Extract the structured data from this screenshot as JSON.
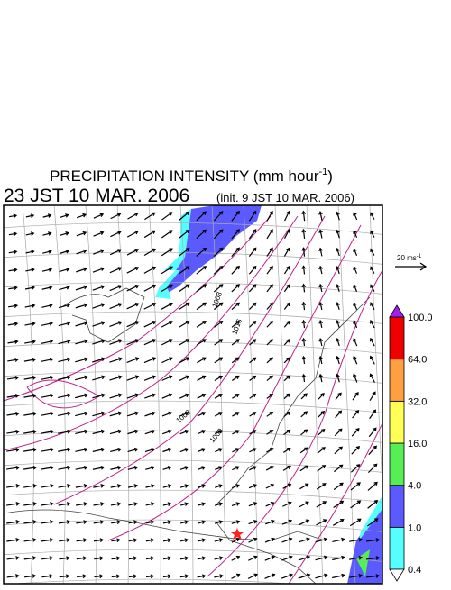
{
  "header": {
    "title": "PRECIPITATION INTENSITY (mm hour",
    "title_superscript": "-1",
    "title_close": ")",
    "valid_time": "23 JST 10 MAR. 2006",
    "init_time": "(init. 9 JST 10 MAR. 2006)"
  },
  "wind_scale": {
    "label": "20 ms",
    "superscript": "-1"
  },
  "map": {
    "isobar_labels": [
      "1008",
      "1016",
      "1008",
      "1000"
    ]
  },
  "colorbar": {
    "levels": [
      "0.4",
      "1.0",
      "4.0",
      "16.0",
      "32.0",
      "64.0",
      "100.0"
    ],
    "under_color": "#ffffff",
    "over_color": "#a020f0",
    "colors": [
      "#55ffff",
      "#5a5aff",
      "#55ee55",
      "#ffff55",
      "#ffa040",
      "#ee0000"
    ]
  }
}
